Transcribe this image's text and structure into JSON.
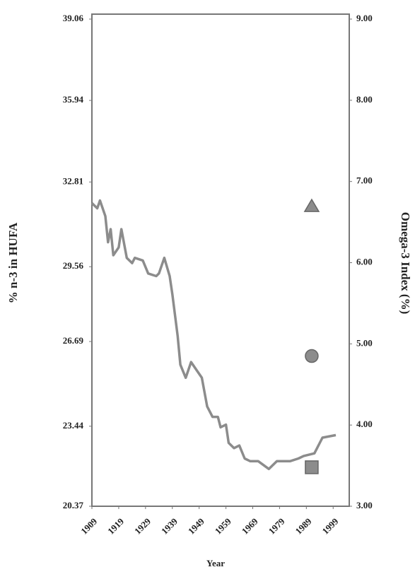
{
  "chart_data": {
    "type": "line",
    "xlabel": "Year",
    "ylabel": "% n-3 in HUFA",
    "y2label": "Omega-3  Index  (%)",
    "xlim": [
      1909,
      2005
    ],
    "xticks": [
      1909,
      1919,
      1929,
      1939,
      1949,
      1959,
      1969,
      1979,
      1989,
      1999
    ],
    "ylim": [
      20.37,
      39.06
    ],
    "yticks": [
      20.37,
      23.44,
      26.69,
      29.56,
      32.81,
      35.94,
      39.06
    ],
    "y2lim": [
      3,
      9
    ],
    "y2ticks": [
      {
        "value": 3,
        "label": "3.00"
      },
      {
        "value": 4,
        "label": "4.00"
      },
      {
        "value": 5,
        "label": "5.00"
      },
      {
        "value": 6,
        "label": "6.00"
      },
      {
        "value": 7,
        "label": "7.00"
      },
      {
        "value": 8,
        "label": "8.00"
      },
      {
        "value": 9,
        "label": "9.00"
      }
    ],
    "series": [
      {
        "color": "#8c8c8c",
        "marker": "none",
        "x": [
          1909,
          1911,
          1912,
          1914,
          1915,
          1916,
          1917,
          1919,
          1920,
          1922,
          1924,
          1925,
          1928,
          1930,
          1933,
          1934,
          1936,
          1938,
          1939,
          1941,
          1942,
          1944,
          1946,
          1948,
          1950,
          1952,
          1954,
          1956,
          1957,
          1959,
          1960,
          1962,
          1964,
          1966,
          1968,
          1971,
          1975,
          1978,
          1980,
          1983,
          1986,
          1988,
          1992,
          1995,
          2000
        ],
        "values": [
          32.0,
          31.8,
          32.1,
          31.5,
          30.5,
          31.0,
          30.0,
          30.3,
          31.0,
          29.9,
          29.7,
          29.9,
          29.8,
          29.3,
          29.2,
          29.3,
          29.9,
          29.2,
          28.5,
          26.9,
          25.8,
          25.3,
          25.9,
          25.6,
          25.3,
          24.2,
          23.8,
          23.8,
          23.4,
          23.5,
          22.8,
          22.6,
          22.7,
          22.2,
          22.1,
          22.1,
          21.8,
          22.1,
          22.1,
          22.1,
          22.2,
          22.3,
          22.4,
          23.0,
          23.1
        ]
      },
      {
        "color": "#8c8c8c",
        "marker": "triangle",
        "axis": "y2",
        "x": [
          1991
        ],
        "values": [
          6.7
        ]
      },
      {
        "color": "#8c8c8c",
        "marker": "circle",
        "axis": "y2",
        "x": [
          1991
        ],
        "values": [
          4.85
        ]
      },
      {
        "color": "#8c8c8c",
        "marker": "square",
        "axis": "y2",
        "x": [
          1991
        ],
        "values": [
          3.48
        ]
      }
    ]
  }
}
